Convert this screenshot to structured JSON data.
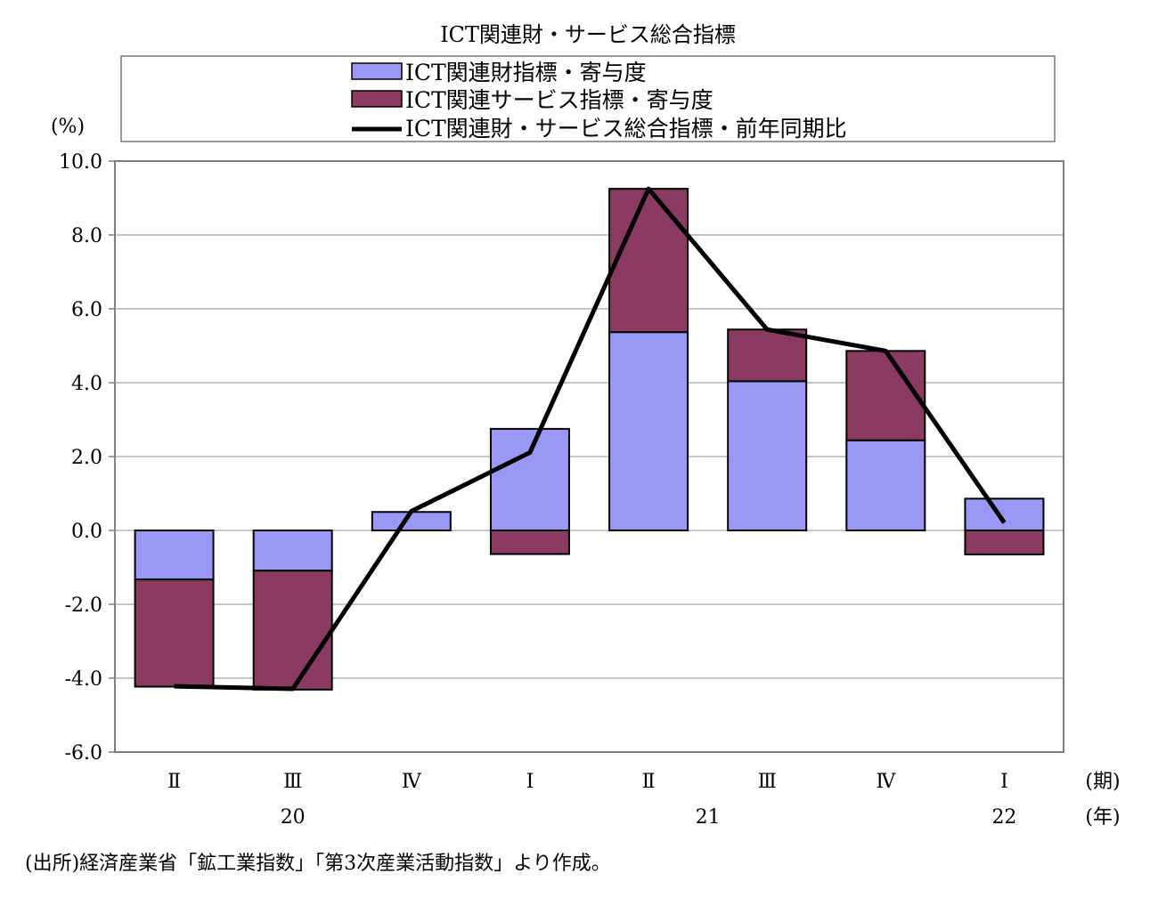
{
  "chart_data": {
    "type": "bar",
    "title": "ICT関連財・サービス総合指標",
    "ylabel": "(%)",
    "xunit_quarter": "(期)",
    "xunit_year": "(年)",
    "categories": [
      "Ⅱ",
      "Ⅲ",
      "Ⅳ",
      "Ⅰ",
      "Ⅱ",
      "Ⅲ",
      "Ⅳ",
      "Ⅰ"
    ],
    "years": [
      {
        "label": "20",
        "category_index": 1
      },
      {
        "label": "21",
        "category_index": 4.5
      },
      {
        "label": "22",
        "category_index": 7
      }
    ],
    "ylim": [
      -6.0,
      10.0
    ],
    "yticks": [
      10.0,
      8.0,
      6.0,
      4.0,
      2.0,
      0.0,
      -2.0,
      -4.0,
      -6.0
    ],
    "ytick_labels": [
      "10.0",
      "8.0",
      "6.0",
      "4.0",
      "2.0",
      "0.0",
      "-2.0",
      "-4.0",
      "-6.0"
    ],
    "grid": true,
    "stacked": true,
    "legend_position": "top",
    "series": [
      {
        "name": "ICT関連財指標・寄与度",
        "kind": "bar",
        "color": "#9999f5",
        "values": [
          -1.33,
          -1.09,
          0.5,
          2.75,
          5.37,
          4.04,
          2.44,
          0.86
        ]
      },
      {
        "name": "ICT関連サービス指標・寄与度",
        "kind": "bar",
        "color": "#8b3a62",
        "values": [
          -2.9,
          -3.22,
          0.0,
          -0.64,
          3.88,
          1.4,
          2.42,
          -0.65
        ]
      },
      {
        "name": "ICT関連財・サービス総合指標・前年同期比",
        "kind": "line",
        "color": "#000000",
        "values": [
          -4.22,
          -4.29,
          0.52,
          2.11,
          9.25,
          5.44,
          4.86,
          0.21
        ]
      }
    ]
  },
  "source_note": "(出所)経済産業省「鉱工業指数」「第3次産業活動指数」より作成。"
}
